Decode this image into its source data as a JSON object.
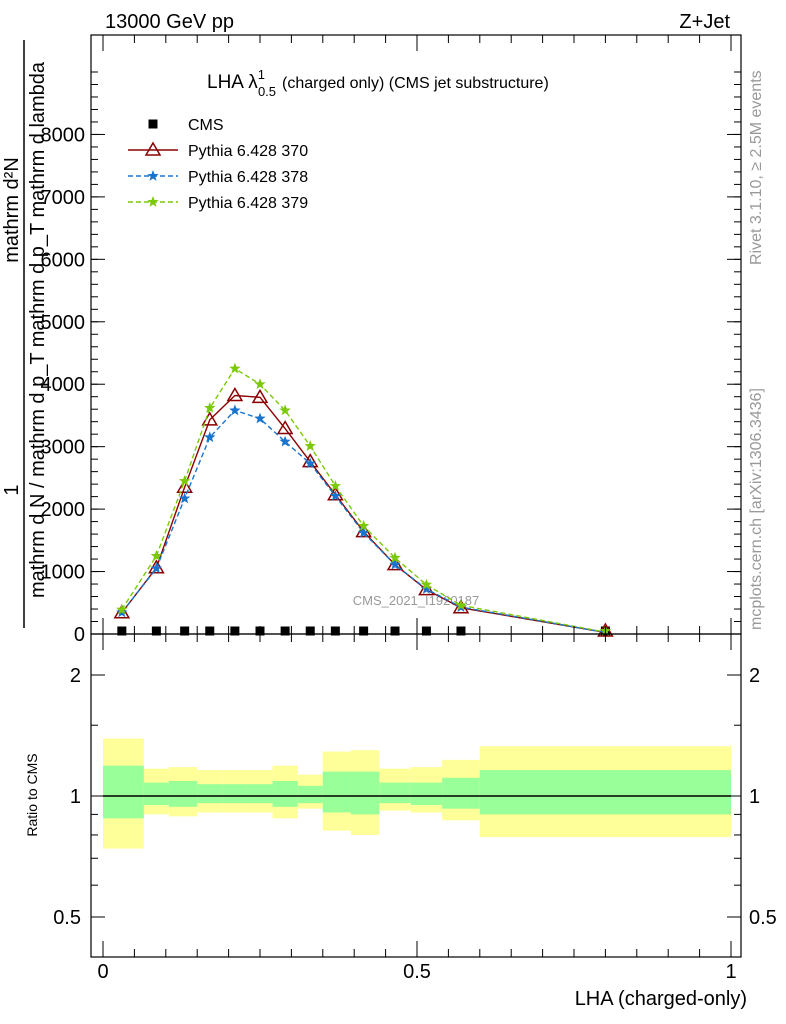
{
  "header": {
    "energy_label": "13000 GeV pp",
    "process_label": "Z+Jet"
  },
  "side_labels": {
    "rivet": "Rivet 3.1.10, ≥ 2.5M events",
    "mcplots": "mcplots.cern.ch [arXiv:1306.3436]"
  },
  "chart_data": [
    {
      "type": "line",
      "title": {
        "main": "LHA λ",
        "sup": "1",
        "sub": "0.5",
        "rest": "(charged only) (CMS jet substructure)"
      },
      "ylabel": {
        "numerator": "1",
        "denominator": "mathrm d N / mathrm d p_T mathrm d p_T mathrm d lambda",
        "num_top": "mathrm d²N"
      },
      "watermark": "CMS_2021_I1920187",
      "ylim": [
        0,
        9000
      ],
      "xlim": [
        0,
        1
      ],
      "yticks": [
        {
          "v": 0,
          "label": "0"
        },
        {
          "v": 1000,
          "label": "1000"
        },
        {
          "v": 2000,
          "label": "2000"
        },
        {
          "v": 3000,
          "label": "3000"
        },
        {
          "v": 4000,
          "label": "4000"
        },
        {
          "v": 5000,
          "label": "5000"
        },
        {
          "v": 6000,
          "label": "6000"
        },
        {
          "v": 7000,
          "label": "7000"
        },
        {
          "v": 8000,
          "label": "8000"
        }
      ],
      "x": [
        0.03,
        0.085,
        0.13,
        0.17,
        0.21,
        0.25,
        0.29,
        0.33,
        0.37,
        0.415,
        0.465,
        0.515,
        0.57,
        0.8
      ],
      "series": [
        {
          "name": "CMS",
          "color": "#000000",
          "marker": "square",
          "values": [
            6,
            8,
            9,
            10,
            11,
            11,
            10,
            9,
            8,
            7,
            5,
            4,
            3,
            1
          ]
        },
        {
          "name": "Pythia 6.428 370",
          "color": "#8b0000",
          "marker": "open-triangle",
          "dash": "",
          "values": [
            340,
            1060,
            2350,
            3430,
            3820,
            3790,
            3290,
            2760,
            2230,
            1640,
            1110,
            710,
            420,
            25
          ]
        },
        {
          "name": "Pythia 6.428 378",
          "color": "#1874cd",
          "marker": "star",
          "dash": "5,3",
          "values": [
            345,
            1050,
            2170,
            3150,
            3580,
            3450,
            3080,
            2730,
            2210,
            1620,
            1110,
            720,
            430,
            25
          ]
        },
        {
          "name": "Pythia 6.428 379",
          "color": "#7cc90a",
          "marker": "star",
          "dash": "5,3",
          "values": [
            390,
            1250,
            2450,
            3620,
            4250,
            4000,
            3580,
            3010,
            2370,
            1730,
            1220,
            790,
            460,
            30
          ]
        }
      ]
    },
    {
      "type": "area",
      "ylabel": "Ratio to CMS",
      "xlabel": "LHA (charged-only)",
      "log_scale_y": true,
      "ylim": [
        0.4,
        2.3
      ],
      "yticks": [
        {
          "v": 0.5,
          "label": "0.5"
        },
        {
          "v": 1,
          "label": "1"
        },
        {
          "v": 2,
          "label": "2"
        }
      ],
      "xticks": [
        {
          "v": 0,
          "label": "0"
        },
        {
          "v": 0.5,
          "label": "0.5"
        },
        {
          "v": 1,
          "label": "1"
        }
      ],
      "bin_edges": [
        0,
        0.065,
        0.105,
        0.15,
        0.19,
        0.23,
        0.27,
        0.31,
        0.35,
        0.395,
        0.44,
        0.49,
        0.54,
        0.6,
        1.0
      ],
      "band_outer": {
        "color": "#ffff99",
        "low": [
          0.74,
          0.9,
          0.89,
          0.91,
          0.91,
          0.91,
          0.88,
          0.93,
          0.82,
          0.8,
          0.92,
          0.91,
          0.87,
          0.79
        ],
        "high": [
          1.39,
          1.17,
          1.18,
          1.16,
          1.16,
          1.16,
          1.19,
          1.13,
          1.29,
          1.3,
          1.17,
          1.18,
          1.23,
          1.33
        ]
      },
      "band_inner": {
        "color": "#99ff99",
        "low": [
          0.88,
          0.95,
          0.94,
          0.96,
          0.96,
          0.96,
          0.94,
          0.96,
          0.91,
          0.9,
          0.96,
          0.95,
          0.93,
          0.9
        ],
        "high": [
          1.19,
          1.08,
          1.09,
          1.07,
          1.07,
          1.07,
          1.09,
          1.06,
          1.15,
          1.15,
          1.08,
          1.08,
          1.11,
          1.16
        ]
      },
      "reference": 1
    }
  ]
}
